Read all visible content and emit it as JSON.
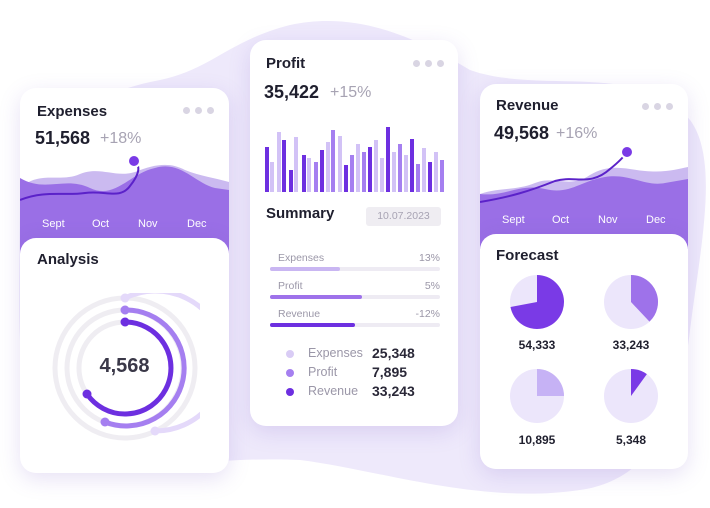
{
  "expenses_card": {
    "title": "Expenses",
    "value": "51,568",
    "change": "+18%",
    "months": [
      "Sept",
      "Oct",
      "Nov",
      "Dec"
    ]
  },
  "analysis_card": {
    "title": "Analysis",
    "value": "4,568"
  },
  "profit_card": {
    "title": "Profit",
    "value": "35,422",
    "change": "+15%"
  },
  "summary": {
    "title": "Summary",
    "date": "10.07.2023",
    "bars": [
      {
        "label": "Expenses",
        "value": "13%",
        "fill": 0.41,
        "color": "#c9b6f2"
      },
      {
        "label": "Profit",
        "value": "5%",
        "fill": 0.54,
        "color": "#9e72ea"
      },
      {
        "label": "Revenue",
        "value": "-12%",
        "fill": 0.5,
        "color": "#6d2fe0"
      }
    ],
    "legend": [
      {
        "name": "Expenses",
        "value": "25,348",
        "color": "#d9ccf5"
      },
      {
        "name": "Profit",
        "value": "7,895",
        "color": "#a57ff0"
      },
      {
        "name": "Revenue",
        "value": "33,243",
        "color": "#6d2fe0"
      }
    ]
  },
  "revenue_card": {
    "title": "Revenue",
    "value": "49,568",
    "change": "+16%",
    "months": [
      "Sept",
      "Oct",
      "Nov",
      "Dec"
    ]
  },
  "forecast": {
    "title": "Forecast",
    "items": [
      {
        "value": "54,333",
        "fraction": 0.72,
        "color": "#7a3ae6"
      },
      {
        "value": "33,243",
        "fraction": 0.38,
        "color": "#9e72ea"
      },
      {
        "value": "10,895",
        "fraction": 0.25,
        "color": "#c6b2f5"
      },
      {
        "value": "5,348",
        "fraction": 0.1,
        "color": "#7a3ae6"
      }
    ]
  },
  "colors": {
    "accent": "#7a3ae6",
    "accent_light": "#c9b6f2",
    "background_blob": "#eee9fb"
  }
}
